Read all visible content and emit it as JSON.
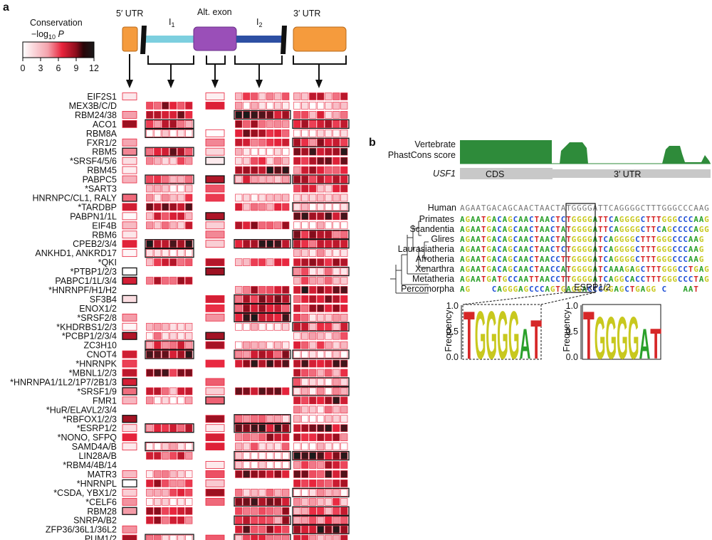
{
  "panel_a": {
    "panel_label": "a",
    "legend": {
      "title_line1": "Conservation",
      "title_line2": "−log",
      "title_sub": "10",
      "title_p": " P",
      "ticks": [
        "0",
        "3",
        "6",
        "9",
        "12"
      ]
    },
    "regions": {
      "utr5": "5′ UTR",
      "alt_exon": "Alt. exon",
      "i1": "I",
      "i1_sub": "1",
      "i2": "I",
      "i2_sub": "2",
      "utr3": "3′ UTR"
    },
    "rbp_labels": [
      "EIF2S1",
      "MEX3B/C/D",
      "RBM24/38",
      "ACO1",
      "RBM8A",
      "FXR1/2",
      "RBM5",
      "*SRSF4/5/6",
      "RBM45",
      "PABPC5",
      "*SART3",
      "HNRNPC/CL1, RALY",
      "*TARDBP",
      "PABPN1/1L",
      "EIF4B",
      "RBM6",
      "CPEB2/3/4",
      "ANKHD1, ANKRD17",
      "*QKI",
      "*PTBP1/2/3",
      "PABPC1/1L/3/4",
      "*HNRNPF/H1/H2",
      "SF3B4",
      "ENOX1/2",
      "*SRSF2/8",
      "*KHDRBS1/2/3",
      "*PCBP1/2/3/4",
      "ZC3H10",
      "CNOT4",
      "*HNRNPK",
      "*MBNL1/2/3",
      "*HNRNPA1/1L2/1P7/2B1/3",
      "*SRSF1/9",
      "FMR1",
      "*HuR/ELAVL2/3/4",
      "*RBFOX1/2/3",
      "*ESRP1/2",
      "*NONO, SFPQ",
      "SAMD4A/B",
      "LIN28A/B",
      "*RBM4/4B/14",
      "MATR3",
      "*HNRNPL",
      "*CSDA, YBX1/2",
      "*CELF6",
      "RBM28",
      "SNRPA/B2",
      "ZFP36/36L1/36L2",
      "PUM1/2"
    ]
  },
  "panel_b": {
    "panel_label": "b",
    "track_label_line1": "Vertebrate",
    "track_label_line2": "PhastCons score",
    "gene_label": "USF1",
    "cds_label": "CDS",
    "utr3_label": "3′ UTR",
    "species": [
      "Human",
      "Primates",
      "Scandentia",
      "Glires",
      "Laurasiatheria",
      "Afrotheria",
      "Xenarthra",
      "Metatheria",
      "Percomorpha"
    ],
    "human_sequence": "AGAATGACAGCAACTAACTATGGGGATTCAGGGGCTTTGGGCCCAAG",
    "aligned_sequences": [
      "AGAATGACAGCAACTAACTATGGGGATTCAGGGGCTTTGGGCCCAAG",
      "AGAATGACAGCAACTAACTCTGGGGATTCAGGGGCTTTGGGCCCAAG",
      "AGAATGACAGCAACTAACTATGGGGATTCAGGGGCTTCAGCCCCAGG",
      "AGAATGACAGCAACTAACTATGGGGATCAGGGGCTTTGGGCCCAAG",
      "AGAATGACAGCAACTAACTCTGGGGATCAGGGGCTTTGGGCCCAAG",
      "AGAATGACAGCAACTAACCTTGGGGATCAGGGGCTTTGGGCCCAAG",
      "AGAATGACAGCAACTAACCATGGGGATCAAAGAGCTTTGGGCCTGAG",
      "AGAATGATGCCAATTAACCTTGGGGATCAGGCACCTTTGGGCCCTAG",
      "AG    CAGGGAGCCCAGTGAGGACCCGGAGCTGAGG C   AAT"
    ],
    "logo_left_word": "TGGGGAT",
    "logo_right_word": "TGGGGAT",
    "logo_right_title": "ESRP1/2",
    "y_axis_label": "Frequency",
    "y_ticks": [
      "0.0",
      "0.5",
      "1.0"
    ]
  },
  "colors": {
    "heat_low": "#ffffff",
    "heat_mid": "#e8243c",
    "heat_high": "#1a1a1a",
    "utr_orange": "#f59b3d",
    "intron1_cyan": "#7ccfdf",
    "exon_purple": "#9a4fb8",
    "intron2_blue": "#2d4fa3",
    "phastcons_green": "#2e8b3a",
    "track_gray": "#c8c8c8",
    "nuc_A": "#2aa02a",
    "nuc_C": "#1f4fd6",
    "nuc_G": "#c8c81e",
    "nuc_T": "#d62728"
  }
}
